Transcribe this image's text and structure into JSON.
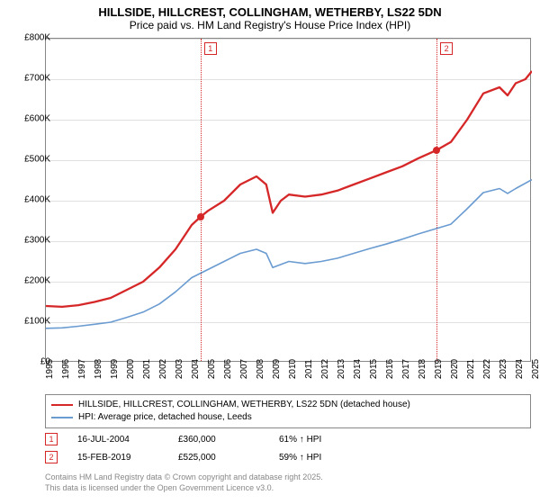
{
  "title_line1": "HILLSIDE, HILLCREST, COLLINGHAM, WETHERBY, LS22 5DN",
  "title_line2": "Price paid vs. HM Land Registry's House Price Index (HPI)",
  "chart": {
    "type": "line",
    "background_color": "#ffffff",
    "grid_color": "#e0e0e0",
    "border_color": "#888888",
    "x_start_year": 1995,
    "x_end_year": 2025,
    "xtick_years": [
      1995,
      1996,
      1997,
      1998,
      1999,
      2000,
      2001,
      2002,
      2003,
      2004,
      2005,
      2006,
      2007,
      2008,
      2009,
      2010,
      2011,
      2012,
      2013,
      2014,
      2015,
      2016,
      2017,
      2018,
      2019,
      2020,
      2021,
      2022,
      2023,
      2024,
      2025
    ],
    "y_min": 0,
    "y_max": 800000,
    "ytick_step": 100000,
    "ytick_labels": [
      "£0",
      "£100K",
      "£200K",
      "£300K",
      "£400K",
      "£500K",
      "£600K",
      "£700K",
      "£800K"
    ],
    "series": [
      {
        "name": "property",
        "color": "#d62728",
        "line_width": 2.3,
        "legend": "HILLSIDE, HILLCREST, COLLINGHAM, WETHERBY, LS22 5DN (detached house)",
        "points": [
          [
            1995,
            140000
          ],
          [
            1996,
            138000
          ],
          [
            1997,
            142000
          ],
          [
            1998,
            150000
          ],
          [
            1999,
            160000
          ],
          [
            2000,
            180000
          ],
          [
            2001,
            200000
          ],
          [
            2002,
            235000
          ],
          [
            2003,
            280000
          ],
          [
            2004,
            340000
          ],
          [
            2004.54,
            360000
          ],
          [
            2005,
            375000
          ],
          [
            2006,
            400000
          ],
          [
            2007,
            440000
          ],
          [
            2008,
            460000
          ],
          [
            2008.6,
            440000
          ],
          [
            2009,
            370000
          ],
          [
            2009.5,
            400000
          ],
          [
            2010,
            415000
          ],
          [
            2011,
            410000
          ],
          [
            2012,
            415000
          ],
          [
            2013,
            425000
          ],
          [
            2014,
            440000
          ],
          [
            2015,
            455000
          ],
          [
            2016,
            470000
          ],
          [
            2017,
            485000
          ],
          [
            2018,
            505000
          ],
          [
            2019.12,
            525000
          ],
          [
            2020,
            545000
          ],
          [
            2021,
            600000
          ],
          [
            2022,
            665000
          ],
          [
            2023,
            680000
          ],
          [
            2023.5,
            660000
          ],
          [
            2024,
            690000
          ],
          [
            2024.6,
            700000
          ],
          [
            2025,
            720000
          ]
        ]
      },
      {
        "name": "hpi",
        "color": "#6a9bd1",
        "line_width": 1.6,
        "legend": "HPI: Average price, detached house, Leeds",
        "points": [
          [
            1995,
            85000
          ],
          [
            1996,
            86000
          ],
          [
            1997,
            90000
          ],
          [
            1998,
            95000
          ],
          [
            1999,
            100000
          ],
          [
            2000,
            112000
          ],
          [
            2001,
            125000
          ],
          [
            2002,
            145000
          ],
          [
            2003,
            175000
          ],
          [
            2004,
            210000
          ],
          [
            2005,
            230000
          ],
          [
            2006,
            250000
          ],
          [
            2007,
            270000
          ],
          [
            2008,
            280000
          ],
          [
            2008.6,
            270000
          ],
          [
            2009,
            235000
          ],
          [
            2010,
            250000
          ],
          [
            2011,
            245000
          ],
          [
            2012,
            250000
          ],
          [
            2013,
            258000
          ],
          [
            2014,
            270000
          ],
          [
            2015,
            282000
          ],
          [
            2016,
            293000
          ],
          [
            2017,
            305000
          ],
          [
            2018,
            318000
          ],
          [
            2019,
            330000
          ],
          [
            2020,
            342000
          ],
          [
            2021,
            380000
          ],
          [
            2022,
            420000
          ],
          [
            2023,
            430000
          ],
          [
            2023.5,
            418000
          ],
          [
            2024,
            430000
          ],
          [
            2025,
            452000
          ]
        ]
      }
    ],
    "markers": [
      {
        "n": "1",
        "year": 2004.54,
        "color": "#d62728",
        "dot_y": 360000
      },
      {
        "n": "2",
        "year": 2019.12,
        "color": "#d62728",
        "dot_y": 525000
      }
    ]
  },
  "legend": {
    "items": [
      {
        "color": "#d62728",
        "label": "HILLSIDE, HILLCREST, COLLINGHAM, WETHERBY, LS22 5DN (detached house)"
      },
      {
        "color": "#6a9bd1",
        "label": "HPI: Average price, detached house, Leeds"
      }
    ]
  },
  "events": [
    {
      "n": "1",
      "color": "#d62728",
      "date": "16-JUL-2004",
      "price": "£360,000",
      "delta": "61% ↑ HPI"
    },
    {
      "n": "2",
      "color": "#d62728",
      "date": "15-FEB-2019",
      "price": "£525,000",
      "delta": "59% ↑ HPI"
    }
  ],
  "footer_line1": "Contains HM Land Registry data © Crown copyright and database right 2025.",
  "footer_line2": "This data is licensed under the Open Government Licence v3.0."
}
